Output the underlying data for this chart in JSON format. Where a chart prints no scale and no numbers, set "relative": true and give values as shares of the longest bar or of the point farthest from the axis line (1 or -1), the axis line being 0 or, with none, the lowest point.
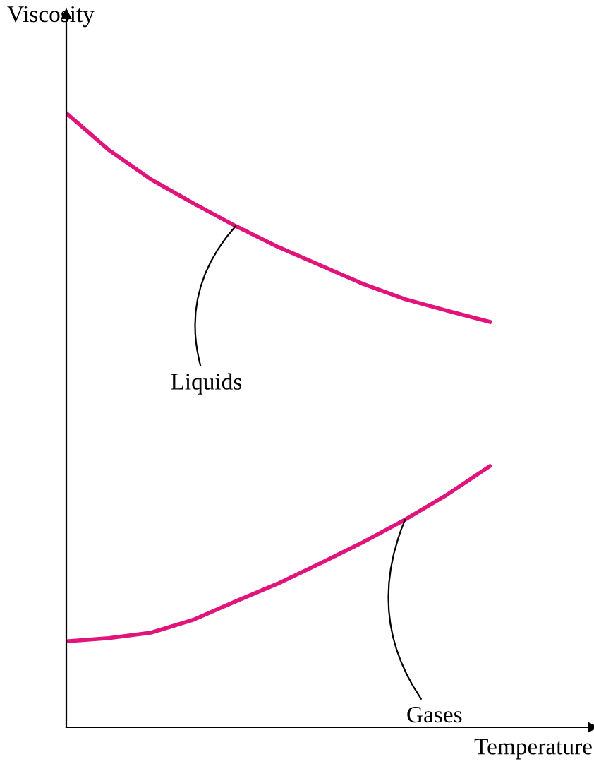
{
  "chart_data": {
    "type": "line",
    "relative": true,
    "xlabel": "Temperature",
    "ylabel": "Viscosity",
    "legend": false,
    "marker": "none",
    "line_style": "solid",
    "categories": [
      null,
      null,
      null,
      null,
      null,
      null,
      null,
      null,
      null,
      null,
      null,
      null,
      null
    ],
    "series": [
      {
        "name": "Liquids",
        "color": "#e0147a",
        "values": [
          1,
          0.94,
          0.892,
          0.853,
          0.816,
          0.782,
          0.752,
          0.722,
          0.697,
          0.678,
          0.66,
          null,
          null
        ]
      },
      {
        "name": "Gases",
        "color": "#e0147a",
        "values": [
          0.14,
          0.145,
          0.154,
          0.175,
          0.205,
          0.234,
          0.267,
          0.301,
          0.338,
          0.379,
          0.425,
          null,
          null
        ]
      }
    ]
  }
}
